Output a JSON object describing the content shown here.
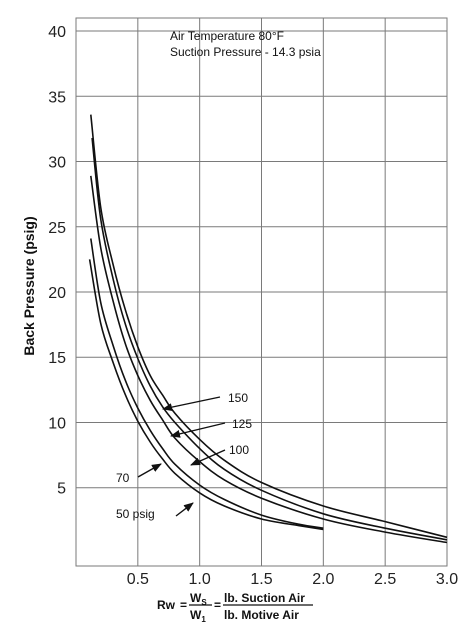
{
  "chart_data": {
    "type": "line",
    "annotations": [
      "Air Temperature 80°F",
      "Suction Pressure - 14.3 psia"
    ],
    "ylabel": "Back Pressure (psig)",
    "xlabel_formula": {
      "lhs": "Rw",
      "eq": "=",
      "num": "W",
      "num_sub": "S",
      "den": "W",
      "den_sub": "1",
      "eq2": "=",
      "num2": "lb. Suction Air",
      "den2": "lb. Motive Air"
    },
    "xlim": [
      0,
      3.0
    ],
    "ylim": [
      -1,
      41
    ],
    "x_ticks": [
      0.5,
      1.0,
      1.5,
      2.0,
      2.5,
      3.0
    ],
    "x_tick_labels": [
      "0.5",
      "1.0",
      "1.5",
      "2.0",
      "2.5",
      "3.0"
    ],
    "y_ticks": [
      5,
      10,
      15,
      20,
      25,
      30,
      35,
      40
    ],
    "y_tick_labels": [
      "5",
      "10",
      "15",
      "20",
      "25",
      "30",
      "35",
      "40"
    ],
    "grid": true,
    "series": [
      {
        "name": "150",
        "label": "150",
        "x": [
          0.12,
          0.2,
          0.3,
          0.4,
          0.5,
          0.6,
          0.7,
          0.8,
          1.0,
          1.2,
          1.5,
          2.0,
          2.5,
          3.0
        ],
        "y": [
          33.6,
          26.5,
          22.1,
          18.6,
          15.8,
          13.6,
          12.1,
          10.7,
          8.7,
          7.1,
          5.4,
          3.6,
          2.4,
          1.2
        ]
      },
      {
        "name": "125",
        "label": "125",
        "x": [
          0.13,
          0.2,
          0.3,
          0.4,
          0.5,
          0.6,
          0.7,
          0.8,
          1.0,
          1.2,
          1.5,
          2.0,
          2.5,
          3.0
        ],
        "y": [
          31.8,
          25.6,
          21.0,
          17.5,
          14.9,
          12.8,
          11.2,
          10.0,
          8.0,
          6.4,
          4.8,
          3.0,
          1.9,
          1.0
        ]
      },
      {
        "name": "100",
        "label": "100",
        "x": [
          0.12,
          0.2,
          0.3,
          0.4,
          0.5,
          0.6,
          0.7,
          0.8,
          1.0,
          1.2,
          1.5,
          2.0,
          2.5,
          3.0
        ],
        "y": [
          28.9,
          23.4,
          19.3,
          16.0,
          13.6,
          11.7,
          10.2,
          8.8,
          7.0,
          5.6,
          4.2,
          2.6,
          1.6,
          0.8
        ]
      },
      {
        "name": "70",
        "label": "70",
        "x": [
          0.12,
          0.2,
          0.3,
          0.4,
          0.5,
          0.6,
          0.7,
          0.8,
          1.0,
          1.2,
          1.5,
          1.8,
          2.0
        ],
        "y": [
          24.1,
          19.2,
          15.9,
          13.2,
          11.1,
          9.4,
          8.0,
          6.8,
          5.2,
          4.1,
          2.9,
          2.2,
          1.9
        ]
      },
      {
        "name": "50 psig",
        "label": "50 psig",
        "x": [
          0.11,
          0.2,
          0.3,
          0.4,
          0.5,
          0.6,
          0.7,
          0.8,
          1.0,
          1.2,
          1.5,
          1.8,
          2.0
        ],
        "y": [
          22.5,
          17.6,
          14.6,
          12.1,
          10.1,
          8.5,
          7.2,
          6.1,
          4.6,
          3.6,
          2.6,
          2.1,
          1.8
        ]
      }
    ]
  }
}
